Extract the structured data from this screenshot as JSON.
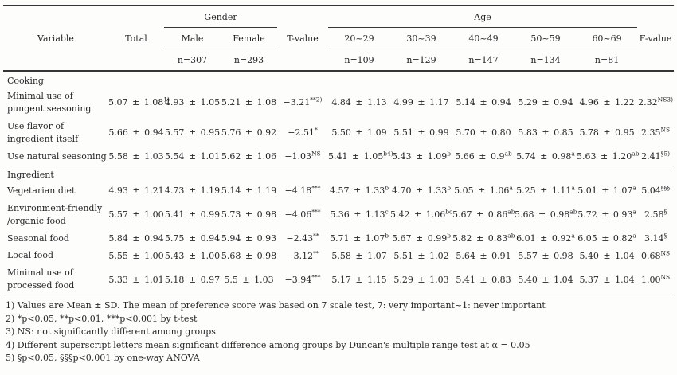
{
  "table": {
    "header": {
      "variable": "Variable",
      "total": "Total",
      "gender_group": "Gender",
      "age_group": "Age",
      "t_value": "T-value",
      "f_value": "F-value",
      "gender_cols": [
        {
          "label": "Male",
          "n": "n=307"
        },
        {
          "label": "Female",
          "n": "n=293"
        }
      ],
      "age_cols": [
        {
          "label": "20~29",
          "n": "n=109"
        },
        {
          "label": "30~39",
          "n": "n=129"
        },
        {
          "label": "40~49",
          "n": "n=147"
        },
        {
          "label": "50~59",
          "n": "n=134"
        },
        {
          "label": "60~69",
          "n": "n=81"
        }
      ]
    },
    "groups": [
      {
        "section": "Cooking",
        "rows": [
          {
            "label": "Minimal use of pungent seasoning",
            "cells": [
              "5.07 ± 1.08^1)",
              "4.93 ± 1.05",
              "5.21 ± 1.08",
              "−3.21^**2)",
              "4.84 ± 1.13",
              "4.99 ± 1.17",
              "5.14 ± 0.94",
              "5.29 ± 0.94",
              "4.96 ± 1.22",
              "2.32^NS3)"
            ]
          },
          {
            "label": "Use flavor of ingredient itself",
            "cells": [
              "5.66 ± 0.94",
              "5.57 ± 0.95",
              "5.76 ± 0.92",
              "−2.51^*",
              "5.50 ± 1.09",
              "5.51 ± 0.99",
              "5.70 ± 0.80",
              "5.83 ± 0.85",
              "5.78 ± 0.95",
              "2.35^NS"
            ]
          },
          {
            "label": "Use natural seasoning",
            "cells": [
              "5.58 ± 1.03",
              "5.54 ± 1.01",
              "5.62 ± 1.06",
              "−1.03^NS",
              "5.41 ± 1.05^b4)",
              "5.43 ± 1.09^b",
              "5.66 ± 0.9^ab",
              "5.74 ± 0.98^a",
              "5.63 ± 1.20^ab",
              "2.41^§5)"
            ]
          }
        ]
      },
      {
        "section": "Ingredient",
        "rows": [
          {
            "label": "Vegetarian diet",
            "cells": [
              "4.93 ± 1.21",
              "4.73 ± 1.19",
              "5.14 ± 1.19",
              "−4.18^***",
              "4.57 ± 1.33^b",
              "4.70 ± 1.33^b",
              "5.05 ± 1.06^a",
              "5.25 ± 1.11^a",
              "5.01 ± 1.07^a",
              "5.04^§§§"
            ]
          },
          {
            "label": "Environment-friendly /organic food",
            "cells": [
              "5.57 ± 1.00",
              "5.41 ± 0.99",
              "5.73 ± 0.98",
              "−4.06^***",
              "5.36 ± 1.13^c",
              "5.42 ± 1.06^bc",
              "5.67 ± 0.86^ab",
              "5.68 ± 0.98^ab",
              "5.72 ± 0.93^a",
              "2.58^§"
            ]
          },
          {
            "label": "Seasonal food",
            "cells": [
              "5.84 ± 0.94",
              "5.75 ± 0.94",
              "5.94 ± 0.93",
              "−2.43^**",
              "5.71 ± 1.07^b",
              "5.67 ± 0.99^b",
              "5.82 ± 0.83^ab",
              "6.01 ± 0.92^a",
              "6.05 ± 0.82^a",
              "3.14^§"
            ]
          },
          {
            "label": "Local food",
            "cells": [
              "5.55 ± 1.00",
              "5.43 ± 1.00",
              "5.68 ± 0.98",
              "−3.12^**",
              "5.58 ± 1.07",
              "5.51 ± 1.02",
              "5.64 ± 0.91",
              "5.57 ± 0.98",
              "5.40 ± 1.04",
              "0.68^NS"
            ]
          },
          {
            "label": "Minimal use of processed food",
            "cells": [
              "5.33 ± 1.01",
              "5.18 ± 0.97",
              "5.5 ± 1.03",
              "−3.94^***",
              "5.17 ± 1.15",
              "5.29 ± 1.03",
              "5.41 ± 0.83",
              "5.40 ± 1.04",
              "5.37 ± 1.04",
              "1.00^NS"
            ]
          }
        ]
      }
    ],
    "footnotes": [
      "1) Values are Mean ± SD. The mean of preference score was based on 7 scale test, 7: very important~1: never important",
      "2) *p<0.05, **p<0.01, ***p<0.001 by t-test",
      "3) NS: not significantly different among groups",
      "4) Different superscript letters mean significant difference among groups by Duncan's multiple range test at α = 0.05",
      "5) §p<0.05, §§§p<0.001 by one-way ANOVA"
    ]
  }
}
